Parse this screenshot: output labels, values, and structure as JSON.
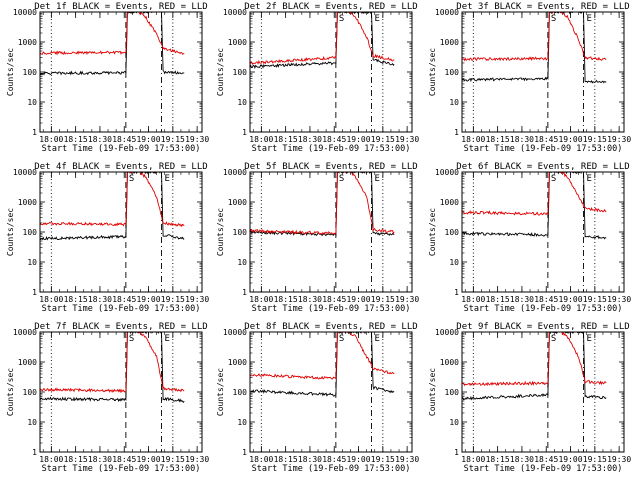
{
  "chart_data": [
    {
      "type": "line",
      "title": "Det 1f BLACK = Events, RED = LLD",
      "xlabel": "Start Time (19-Feb-09 17:53:00)",
      "ylabel": "Counts/sec",
      "yscale": "log",
      "ylim": [
        1,
        10000
      ],
      "x_ticks": [
        "18:00",
        "18:15",
        "18:30",
        "18:45",
        "19:00",
        "19:15",
        "19:30"
      ],
      "y_ticks": [
        "1",
        "10",
        "100",
        "1000",
        "10000"
      ],
      "vlines": {
        "dotted": [
          "18:00",
          "19:15"
        ],
        "dashed": [
          "18:46"
        ],
        "dashdot": [
          "19:08"
        ]
      },
      "annotations": [],
      "series": [
        {
          "color": "#000000",
          "values": [
            {
              "x": "17:53",
              "y": 90
            },
            {
              "x": "18:46",
              "y": 95
            },
            {
              "x": "18:47",
              "y": 10000
            },
            {
              "x": "19:08",
              "y": 10000
            },
            {
              "x": "19:09",
              "y": 100
            },
            {
              "x": "19:22",
              "y": 92
            }
          ]
        },
        {
          "color": "#e00000",
          "values": [
            {
              "x": "17:53",
              "y": 430
            },
            {
              "x": "18:46",
              "y": 450
            },
            {
              "x": "18:47",
              "y": 10000
            },
            {
              "x": "18:53",
              "y": 11000
            },
            {
              "x": "18:58",
              "y": 7000
            },
            {
              "x": "19:05",
              "y": 1800
            },
            {
              "x": "19:09",
              "y": 600
            },
            {
              "x": "19:22",
              "y": 420
            }
          ]
        }
      ]
    },
    {
      "type": "line",
      "title": "Det 2f BLACK = Events, RED = LLD",
      "xlabel": "Start Time (19-Feb-09 17:53:00)",
      "ylabel": "Counts/sec",
      "yscale": "log",
      "ylim": [
        1,
        10000
      ],
      "x_ticks": [
        "18:00",
        "18:15",
        "18:30",
        "18:45",
        "19:00",
        "19:15",
        "19:30"
      ],
      "y_ticks": [
        "1",
        "10",
        "100",
        "1000",
        "10000"
      ],
      "vlines": {
        "dotted": [
          "18:00",
          "19:15"
        ],
        "dashed": [
          "18:46"
        ],
        "dashdot": [
          "19:08"
        ]
      },
      "annotations": [
        "S",
        "E"
      ],
      "series": [
        {
          "color": "#000000",
          "values": [
            {
              "x": "17:53",
              "y": 150
            },
            {
              "x": "18:46",
              "y": 200
            },
            {
              "x": "18:47",
              "y": 10000
            },
            {
              "x": "19:08",
              "y": 10000
            },
            {
              "x": "19:09",
              "y": 250
            },
            {
              "x": "19:22",
              "y": 180
            }
          ]
        },
        {
          "color": "#e00000",
          "values": [
            {
              "x": "17:53",
              "y": 200
            },
            {
              "x": "18:46",
              "y": 300
            },
            {
              "x": "18:47",
              "y": 10000
            },
            {
              "x": "18:53",
              "y": 11000
            },
            {
              "x": "18:58",
              "y": 7000
            },
            {
              "x": "19:05",
              "y": 1500
            },
            {
              "x": "19:09",
              "y": 350
            },
            {
              "x": "19:22",
              "y": 250
            }
          ]
        }
      ]
    },
    {
      "type": "line",
      "title": "Det 3f BLACK = Events, RED = LLD",
      "xlabel": "Start Time (19-Feb-09 17:53:00)",
      "ylabel": "Counts/sec",
      "yscale": "log",
      "ylim": [
        1,
        10000
      ],
      "x_ticks": [
        "18:00",
        "18:15",
        "18:30",
        "18:45",
        "19:00",
        "19:15",
        "19:30"
      ],
      "y_ticks": [
        "1",
        "10",
        "100",
        "1000",
        "10000"
      ],
      "vlines": {
        "dotted": [
          "18:00",
          "19:15"
        ],
        "dashed": [
          "18:46"
        ],
        "dashdot": [
          "19:08"
        ]
      },
      "annotations": [
        "S",
        "E"
      ],
      "series": [
        {
          "color": "#000000",
          "values": [
            {
              "x": "17:53",
              "y": 55
            },
            {
              "x": "18:46",
              "y": 60
            },
            {
              "x": "18:47",
              "y": 10000
            },
            {
              "x": "19:08",
              "y": 10000
            },
            {
              "x": "19:09",
              "y": 50
            },
            {
              "x": "19:22",
              "y": 45
            }
          ]
        },
        {
          "color": "#e00000",
          "values": [
            {
              "x": "17:53",
              "y": 270
            },
            {
              "x": "18:46",
              "y": 280
            },
            {
              "x": "18:47",
              "y": 10000
            },
            {
              "x": "18:53",
              "y": 11000
            },
            {
              "x": "18:58",
              "y": 7000
            },
            {
              "x": "19:05",
              "y": 1200
            },
            {
              "x": "19:09",
              "y": 300
            },
            {
              "x": "19:22",
              "y": 260
            }
          ]
        }
      ]
    },
    {
      "type": "line",
      "title": "Det 4f BLACK = Events, RED = LLD",
      "xlabel": "Start Time (19-Feb-09 17:53:00)",
      "ylabel": "Counts/sec",
      "yscale": "log",
      "ylim": [
        1,
        10000
      ],
      "x_ticks": [
        "18:00",
        "18:15",
        "18:30",
        "18:45",
        "19:00",
        "19:15",
        "19:30"
      ],
      "y_ticks": [
        "1",
        "10",
        "100",
        "1000",
        "10000"
      ],
      "vlines": {
        "dotted": [
          "18:00",
          "19:15"
        ],
        "dashed": [
          "18:46"
        ],
        "dashdot": [
          "19:08"
        ]
      },
      "annotations": [
        "S",
        "E"
      ],
      "series": [
        {
          "color": "#000000",
          "values": [
            {
              "x": "17:53",
              "y": 60
            },
            {
              "x": "18:46",
              "y": 70
            },
            {
              "x": "18:47",
              "y": 10000
            },
            {
              "x": "19:08",
              "y": 10000
            },
            {
              "x": "19:09",
              "y": 80
            },
            {
              "x": "19:22",
              "y": 60
            }
          ]
        },
        {
          "color": "#e00000",
          "values": [
            {
              "x": "17:53",
              "y": 190
            },
            {
              "x": "18:46",
              "y": 180
            },
            {
              "x": "18:47",
              "y": 10000
            },
            {
              "x": "18:53",
              "y": 11000
            },
            {
              "x": "18:58",
              "y": 7000
            },
            {
              "x": "19:05",
              "y": 1500
            },
            {
              "x": "19:09",
              "y": 200
            },
            {
              "x": "19:22",
              "y": 160
            }
          ]
        }
      ]
    },
    {
      "type": "line",
      "title": "Det 5f BLACK = Events, RED = LLD",
      "xlabel": "Start Time (19-Feb-09 17:53:00)",
      "ylabel": "Counts/sec",
      "yscale": "log",
      "ylim": [
        1,
        10000
      ],
      "x_ticks": [
        "18:00",
        "18:15",
        "18:30",
        "18:45",
        "19:00",
        "19:15",
        "19:30"
      ],
      "y_ticks": [
        "1",
        "10",
        "100",
        "1000",
        "10000"
      ],
      "vlines": {
        "dotted": [
          "18:00",
          "19:15"
        ],
        "dashed": [
          "18:46"
        ],
        "dashdot": [
          "19:08"
        ]
      },
      "annotations": [
        "S",
        "E"
      ],
      "series": [
        {
          "color": "#000000",
          "values": [
            {
              "x": "17:53",
              "y": 100
            },
            {
              "x": "18:46",
              "y": 80
            },
            {
              "x": "18:47",
              "y": 10000
            },
            {
              "x": "19:08",
              "y": 10000
            },
            {
              "x": "19:09",
              "y": 90
            },
            {
              "x": "19:22",
              "y": 80
            }
          ]
        },
        {
          "color": "#e00000",
          "values": [
            {
              "x": "17:53",
              "y": 110
            },
            {
              "x": "18:46",
              "y": 90
            },
            {
              "x": "18:47",
              "y": 10000
            },
            {
              "x": "18:53",
              "y": 11000
            },
            {
              "x": "18:58",
              "y": 7000
            },
            {
              "x": "19:05",
              "y": 1500
            },
            {
              "x": "19:09",
              "y": 120
            },
            {
              "x": "19:22",
              "y": 100
            }
          ]
        }
      ]
    },
    {
      "type": "line",
      "title": "Det 6f BLACK = Events, RED = LLD",
      "xlabel": "Start Time (19-Feb-09 17:53:00)",
      "ylabel": "Counts/sec",
      "yscale": "log",
      "ylim": [
        1,
        10000
      ],
      "x_ticks": [
        "18:00",
        "18:15",
        "18:30",
        "18:45",
        "19:00",
        "19:15",
        "19:30"
      ],
      "y_ticks": [
        "1",
        "10",
        "100",
        "1000",
        "10000"
      ],
      "vlines": {
        "dotted": [
          "18:00",
          "19:15"
        ],
        "dashed": [
          "18:46"
        ],
        "dashdot": [
          "19:08"
        ]
      },
      "annotations": [
        "S",
        "E"
      ],
      "series": [
        {
          "color": "#000000",
          "values": [
            {
              "x": "17:53",
              "y": 90
            },
            {
              "x": "18:46",
              "y": 80
            },
            {
              "x": "18:47",
              "y": 10000
            },
            {
              "x": "19:08",
              "y": 10000
            },
            {
              "x": "19:09",
              "y": 70
            },
            {
              "x": "19:22",
              "y": 65
            }
          ]
        },
        {
          "color": "#e00000",
          "values": [
            {
              "x": "17:53",
              "y": 450
            },
            {
              "x": "18:46",
              "y": 400
            },
            {
              "x": "18:47",
              "y": 10000
            },
            {
              "x": "18:53",
              "y": 11000
            },
            {
              "x": "18:58",
              "y": 7000
            },
            {
              "x": "19:05",
              "y": 1500
            },
            {
              "x": "19:09",
              "y": 600
            },
            {
              "x": "19:22",
              "y": 500
            }
          ]
        }
      ]
    },
    {
      "type": "line",
      "title": "Det 7f BLACK = Events, RED = LLD",
      "xlabel": "Start Time (19-Feb-09 17:53:00)",
      "ylabel": "Counts/sec",
      "yscale": "log",
      "ylim": [
        1,
        10000
      ],
      "x_ticks": [
        "18:00",
        "18:15",
        "18:30",
        "18:45",
        "19:00",
        "19:15",
        "19:30"
      ],
      "y_ticks": [
        "1",
        "10",
        "100",
        "1000",
        "10000"
      ],
      "vlines": {
        "dotted": [
          "18:00",
          "19:15"
        ],
        "dashed": [
          "18:46"
        ],
        "dashdot": [
          "19:08"
        ]
      },
      "annotations": [
        "S",
        "E"
      ],
      "series": [
        {
          "color": "#000000",
          "values": [
            {
              "x": "17:53",
              "y": 60
            },
            {
              "x": "18:46",
              "y": 55
            },
            {
              "x": "18:47",
              "y": 10000
            },
            {
              "x": "19:08",
              "y": 10000
            },
            {
              "x": "19:09",
              "y": 60
            },
            {
              "x": "19:22",
              "y": 50
            }
          ]
        },
        {
          "color": "#e00000",
          "values": [
            {
              "x": "17:53",
              "y": 120
            },
            {
              "x": "18:46",
              "y": 110
            },
            {
              "x": "18:47",
              "y": 10000
            },
            {
              "x": "18:53",
              "y": 11000
            },
            {
              "x": "18:58",
              "y": 7000
            },
            {
              "x": "19:05",
              "y": 1500
            },
            {
              "x": "19:09",
              "y": 130
            },
            {
              "x": "19:22",
              "y": 110
            }
          ]
        }
      ]
    },
    {
      "type": "line",
      "title": "Det 8f BLACK = Events, RED = LLD",
      "xlabel": "Start Time (19-Feb-09 17:53:00)",
      "ylabel": "Counts/sec",
      "yscale": "log",
      "ylim": [
        1,
        10000
      ],
      "x_ticks": [
        "18:00",
        "18:15",
        "18:30",
        "18:45",
        "19:00",
        "19:15",
        "19:30"
      ],
      "y_ticks": [
        "1",
        "10",
        "100",
        "1000",
        "10000"
      ],
      "vlines": {
        "dotted": [
          "18:00",
          "19:15"
        ],
        "dashed": [
          "18:46"
        ],
        "dashdot": [
          "19:08"
        ]
      },
      "annotations": [
        "S",
        "E"
      ],
      "series": [
        {
          "color": "#000000",
          "values": [
            {
              "x": "17:53",
              "y": 110
            },
            {
              "x": "18:46",
              "y": 80
            },
            {
              "x": "18:47",
              "y": 10000
            },
            {
              "x": "19:08",
              "y": 10000
            },
            {
              "x": "19:09",
              "y": 140
            },
            {
              "x": "19:22",
              "y": 100
            }
          ]
        },
        {
          "color": "#e00000",
          "values": [
            {
              "x": "17:53",
              "y": 380
            },
            {
              "x": "18:46",
              "y": 280
            },
            {
              "x": "18:47",
              "y": 10000
            },
            {
              "x": "18:53",
              "y": 11000
            },
            {
              "x": "18:58",
              "y": 7000
            },
            {
              "x": "19:05",
              "y": 1500
            },
            {
              "x": "19:09",
              "y": 600
            },
            {
              "x": "19:22",
              "y": 400
            }
          ]
        }
      ]
    },
    {
      "type": "line",
      "title": "Det 9f BLACK = Events, RED = LLD",
      "xlabel": "Start Time (19-Feb-09 17:53:00)",
      "ylabel": "Counts/sec",
      "yscale": "log",
      "ylim": [
        1,
        10000
      ],
      "x_ticks": [
        "18:00",
        "18:15",
        "18:30",
        "18:45",
        "19:00",
        "19:15",
        "19:30"
      ],
      "y_ticks": [
        "1",
        "10",
        "100",
        "1000",
        "10000"
      ],
      "vlines": {
        "dotted": [
          "18:00",
          "19:15"
        ],
        "dashed": [
          "18:46"
        ],
        "dashdot": [
          "19:08"
        ]
      },
      "annotations": [
        "S",
        "E"
      ],
      "series": [
        {
          "color": "#000000",
          "values": [
            {
              "x": "17:53",
              "y": 60
            },
            {
              "x": "18:46",
              "y": 80
            },
            {
              "x": "18:47",
              "y": 10000
            },
            {
              "x": "19:08",
              "y": 10000
            },
            {
              "x": "19:09",
              "y": 70
            },
            {
              "x": "19:22",
              "y": 65
            }
          ]
        },
        {
          "color": "#e00000",
          "values": [
            {
              "x": "17:53",
              "y": 180
            },
            {
              "x": "18:46",
              "y": 200
            },
            {
              "x": "18:47",
              "y": 10000
            },
            {
              "x": "18:53",
              "y": 11000
            },
            {
              "x": "18:58",
              "y": 7000
            },
            {
              "x": "19:05",
              "y": 1500
            },
            {
              "x": "19:09",
              "y": 220
            },
            {
              "x": "19:22",
              "y": 200
            }
          ]
        }
      ]
    }
  ]
}
